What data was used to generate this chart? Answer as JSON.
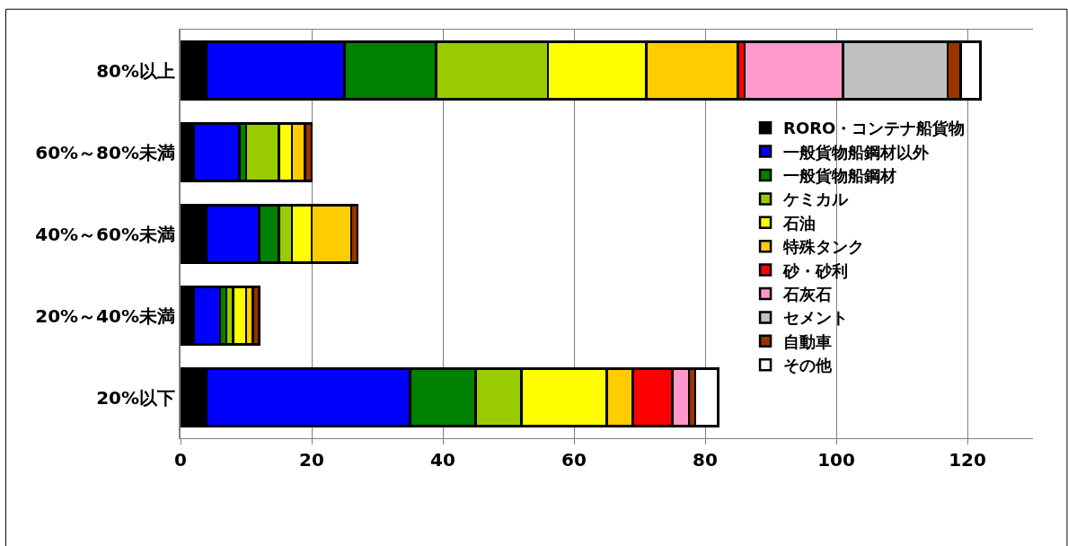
{
  "chart_data": {
    "type": "bar",
    "orientation": "horizontal",
    "stacked": true,
    "categories": [
      "80%以上",
      "60%～80%未満",
      "40%～60%未満",
      "20%～40%未満",
      "20%以下"
    ],
    "xlim": [
      0,
      130
    ],
    "xticks": [
      0,
      20,
      40,
      60,
      80,
      100,
      120
    ],
    "grid": "x",
    "legend": "right",
    "series": [
      {
        "name": "RORO・コンテナ船貨物",
        "color": "#000000",
        "values": [
          4,
          2,
          4,
          2,
          4
        ]
      },
      {
        "name": "一般貨物船鋼材以外",
        "color": "#0000ff",
        "values": [
          21,
          7,
          8,
          4,
          31
        ]
      },
      {
        "name": "一般貨物船鋼材",
        "color": "#008000",
        "values": [
          14,
          1,
          3,
          1,
          10
        ]
      },
      {
        "name": "ケミカル",
        "color": "#99cc00",
        "values": [
          17,
          5,
          2,
          1,
          7
        ]
      },
      {
        "name": "石油",
        "color": "#ffff00",
        "values": [
          15,
          2,
          3,
          2,
          13
        ]
      },
      {
        "name": "特殊タンク",
        "color": "#ffcc00",
        "values": [
          14,
          2,
          6,
          1,
          4
        ]
      },
      {
        "name": "砂・砂利",
        "color": "#ff0000",
        "values": [
          1,
          null,
          null,
          null,
          6
        ]
      },
      {
        "name": "石灰石",
        "color": "#ff99cc",
        "values": [
          15,
          null,
          null,
          null,
          2.5
        ]
      },
      {
        "name": "セメント",
        "color": "#c0c0c0",
        "values": [
          16,
          null,
          null,
          null,
          null
        ]
      },
      {
        "name": "自動車",
        "color": "#993300",
        "values": [
          2,
          1,
          1,
          1,
          1
        ]
      },
      {
        "name": "その他",
        "color": "#ffffff",
        "values": [
          3,
          null,
          null,
          null,
          3.5
        ]
      }
    ]
  }
}
